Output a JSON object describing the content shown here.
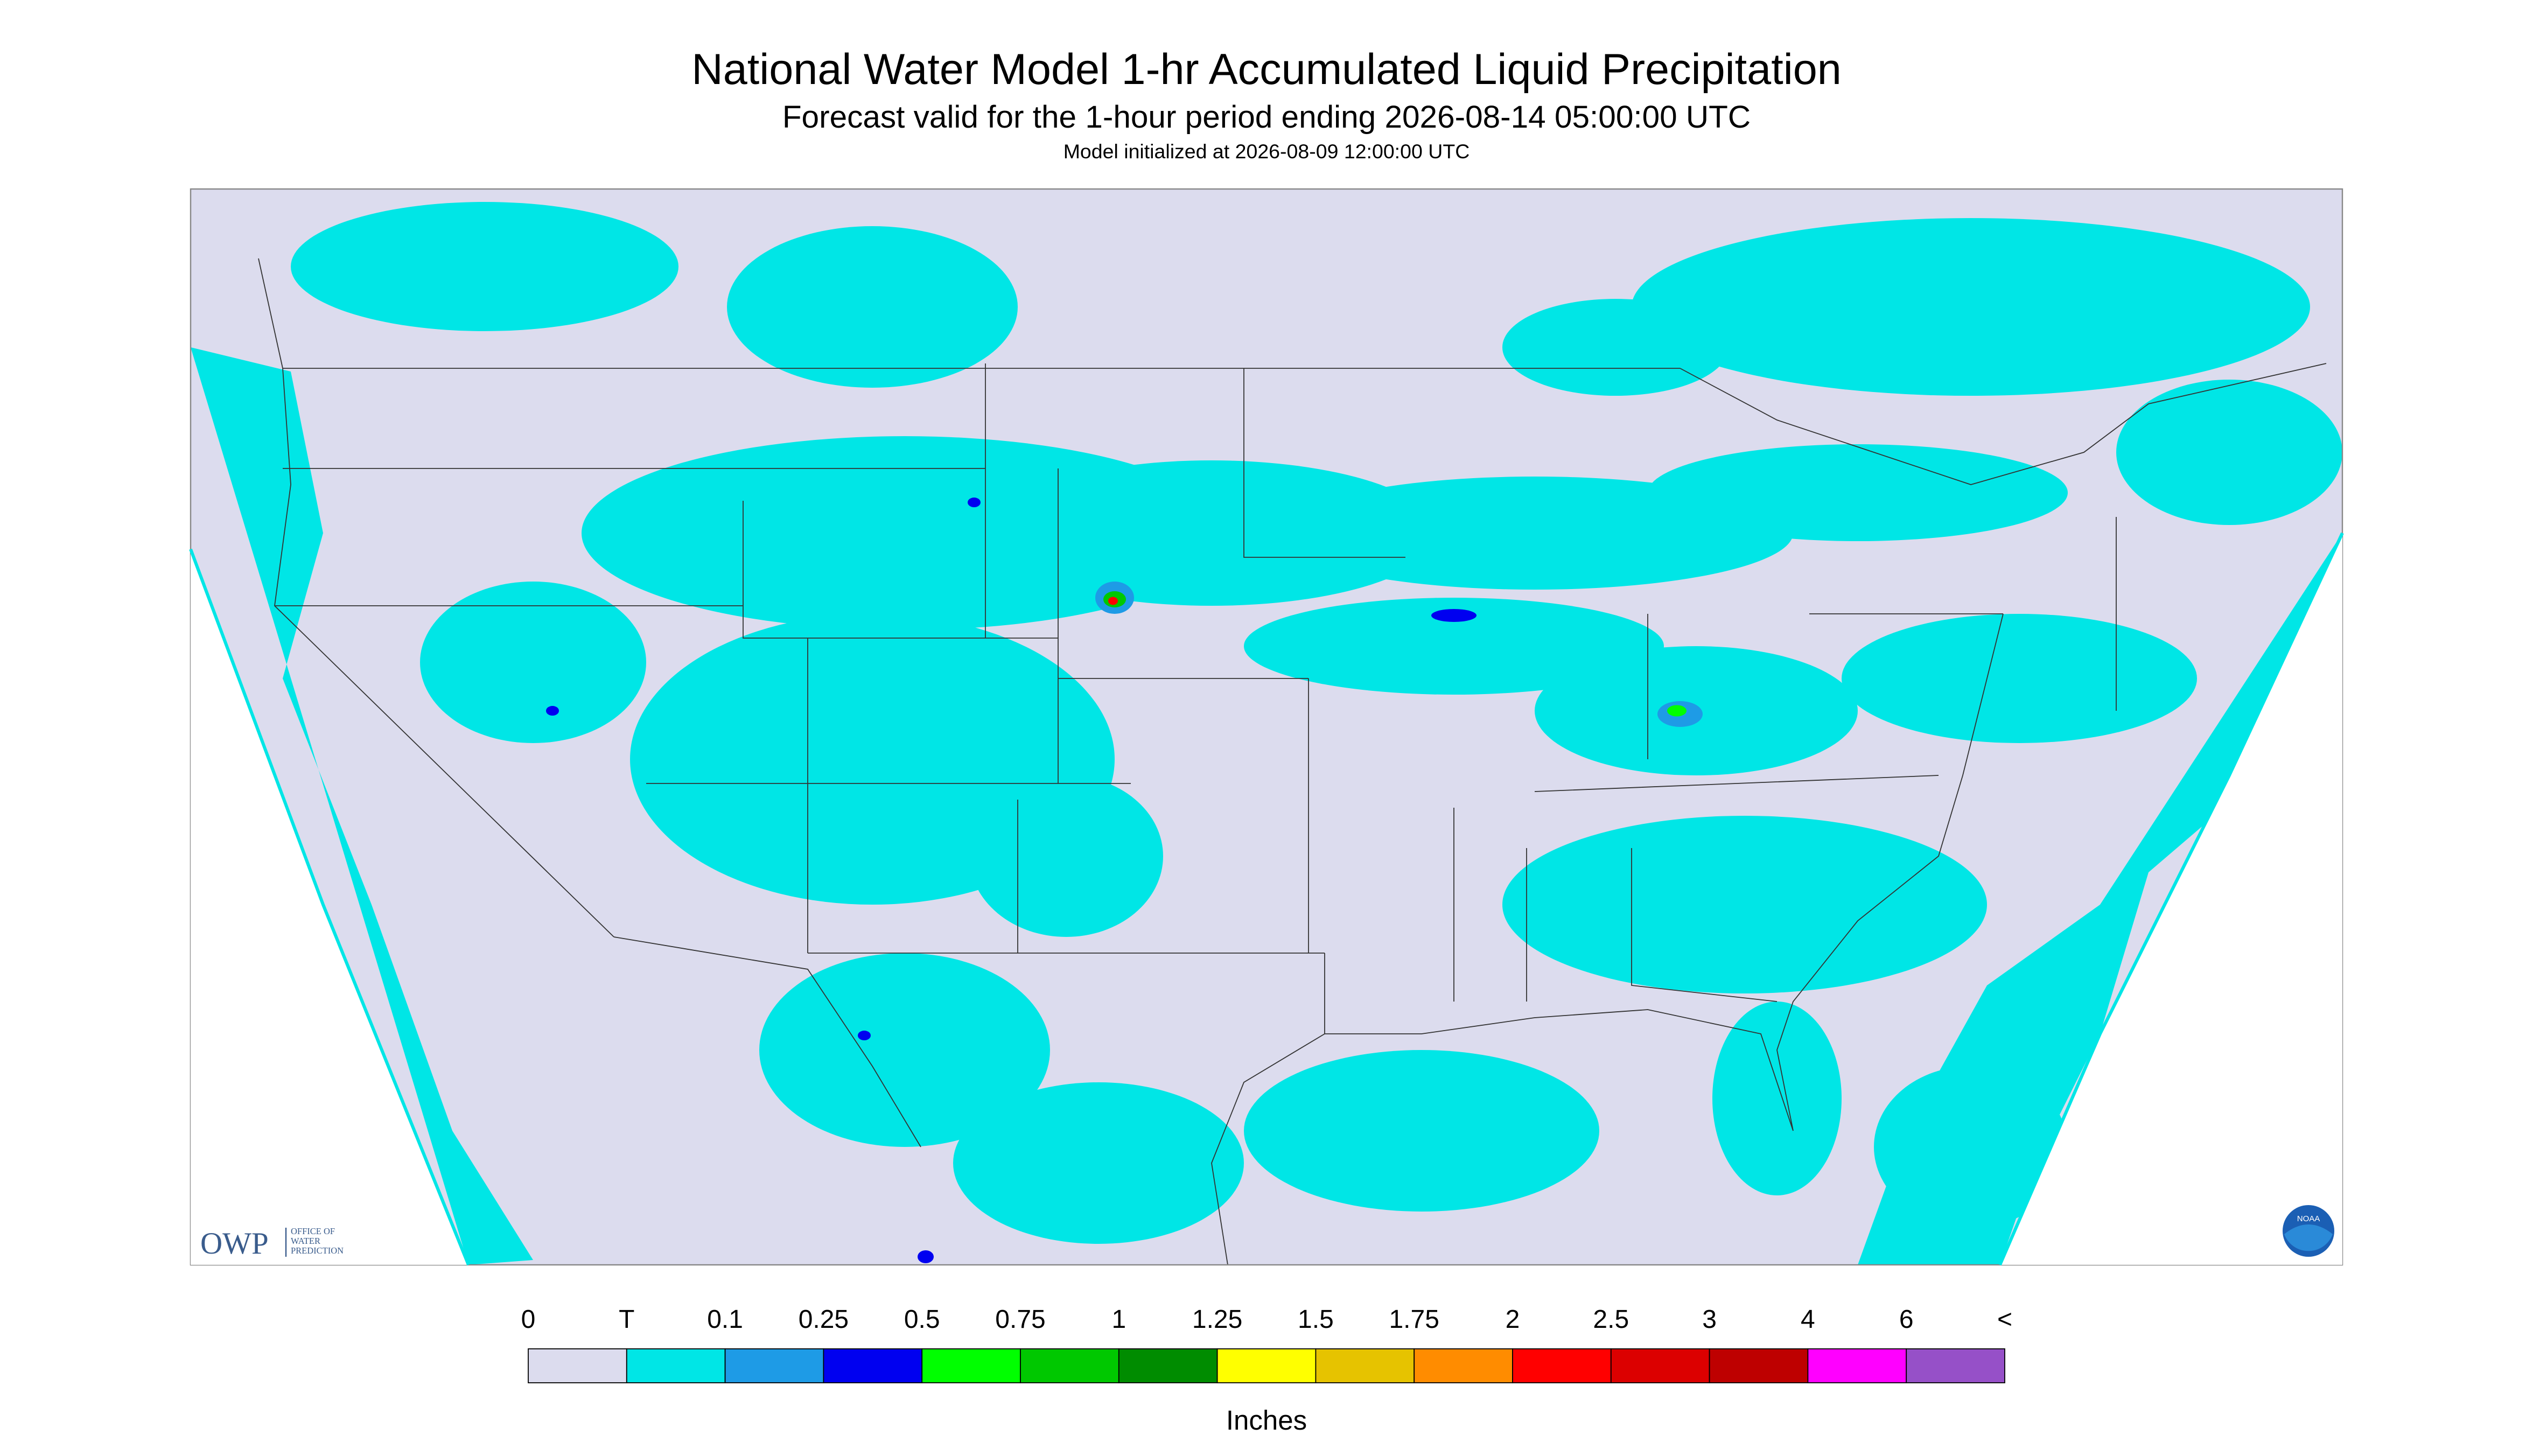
{
  "header": {
    "title": "National Water Model 1-hr Accumulated Liquid Precipitation",
    "subtitle": "Forecast valid for the 1-hour period ending 2026-08-14 05:00:00 UTC",
    "note": "Model initialized at 2026-08-09 12:00:00 UTC"
  },
  "logos": {
    "owp": "OWP",
    "owp_text": [
      "OFFICE OF",
      "WATER",
      "PREDICTION"
    ],
    "noaa": "NOAA"
  },
  "legend": {
    "labels": [
      "0",
      "T",
      "0.1",
      "0.25",
      "0.5",
      "0.75",
      "1",
      "1.25",
      "1.5",
      "1.75",
      "2",
      "2.5",
      "3",
      "4",
      "6",
      "<"
    ],
    "colors": [
      "#dcdcee",
      "#00e6e6",
      "#1e9be6",
      "#0000f0",
      "#00ff00",
      "#00c800",
      "#008c00",
      "#ffff00",
      "#e6c300",
      "#ff8c00",
      "#ff0000",
      "#dc0000",
      "#be0000",
      "#ff00ff",
      "#9650c8"
    ],
    "units": "Inches"
  }
}
